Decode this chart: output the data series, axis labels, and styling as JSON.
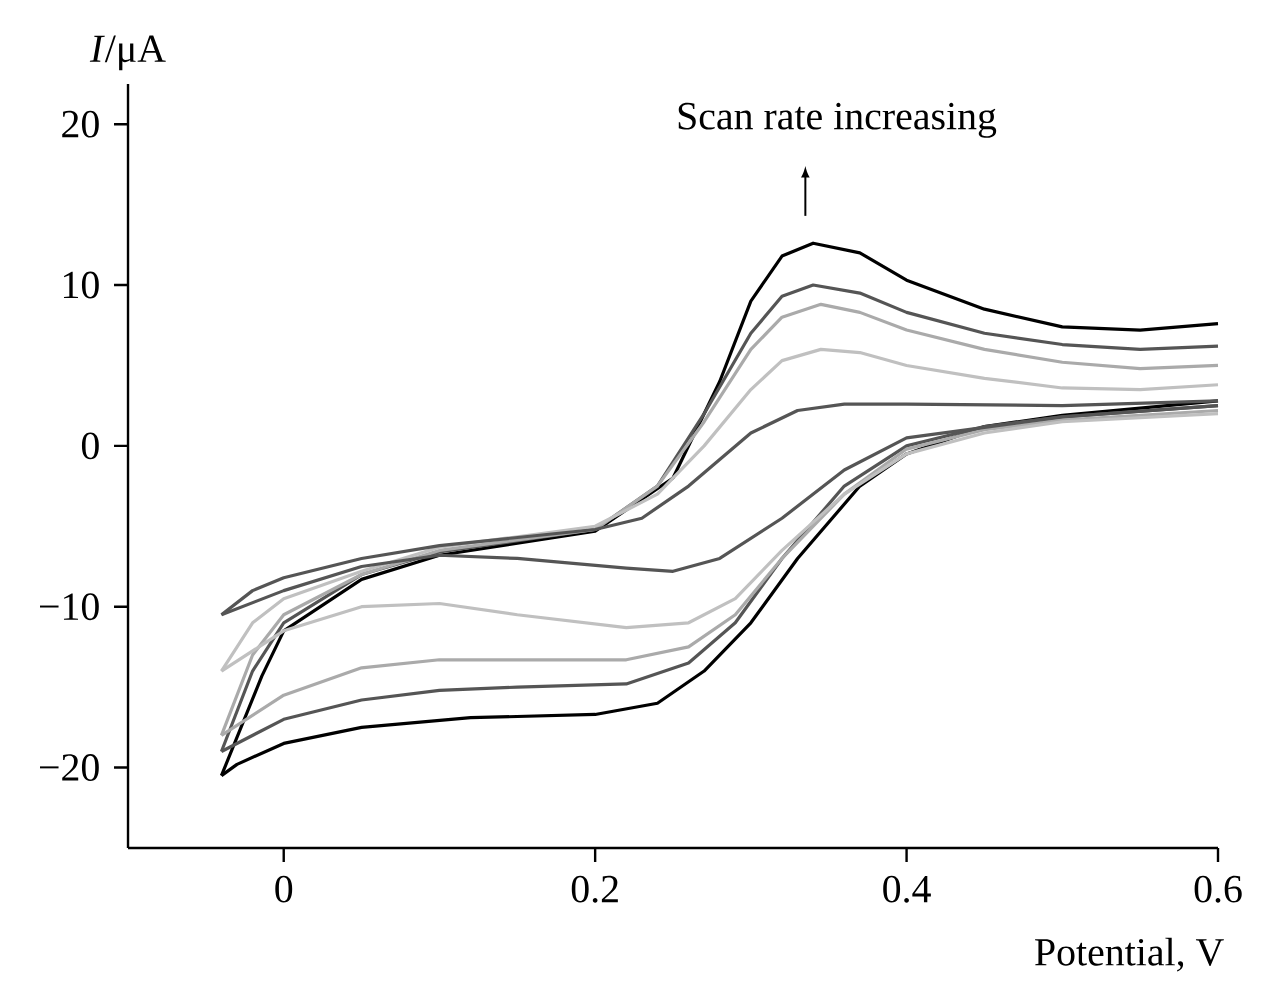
{
  "chart_data": {
    "type": "line",
    "xlabel": "Potential, V",
    "ylabel": "*I*/μA",
    "annotations": [
      "Scan rate increasing"
    ],
    "xlim": [
      -0.1,
      0.6
    ],
    "ylim": [
      -25,
      22.5
    ],
    "xticks": [
      0,
      0.2,
      0.4,
      0.6
    ],
    "yticks": [
      {
        "value": -20,
        "label": "−20"
      },
      {
        "value": -10,
        "label": "−10"
      },
      0,
      10,
      20
    ],
    "grid": false,
    "marker": "none",
    "line_style": "solid",
    "series": [
      {
        "color": "#000000",
        "x": [
          -0.04,
          -0.014,
          0,
          0.05,
          0.1,
          0.2,
          0.25,
          0.28,
          0.3,
          0.32,
          0.34,
          0.37,
          0.4,
          0.45,
          0.5,
          0.55,
          0.6
        ],
        "values": [
          -20.5,
          -14.3,
          -11.5,
          -8.3,
          -6.8,
          -5.3,
          -2,
          4,
          9,
          11.8,
          12.6,
          12,
          10.3,
          8.5,
          7.4,
          7.2,
          7.6
        ]
      },
      {
        "color": "#000000",
        "x": [
          -0.04,
          -0.03,
          0,
          0.05,
          0.12,
          0.2,
          0.24,
          0.27,
          0.3,
          0.33,
          0.37,
          0.4,
          0.45,
          0.5,
          0.6
        ],
        "values": [
          -20.5,
          -19.8,
          -18.5,
          -17.5,
          -16.9,
          -16.7,
          -16,
          -14,
          -11,
          -7,
          -2.5,
          -0.5,
          1.2,
          1.9,
          2.8
        ]
      },
      {
        "color": "#555555",
        "x": [
          -0.04,
          -0.02,
          0,
          0.05,
          0.1,
          0.2,
          0.24,
          0.27,
          0.3,
          0.32,
          0.34,
          0.37,
          0.4,
          0.45,
          0.5,
          0.55,
          0.6
        ],
        "values": [
          -19,
          -14,
          -11,
          -8,
          -6.6,
          -5.2,
          -2.5,
          2,
          7,
          9.3,
          10,
          9.5,
          8.3,
          7,
          6.3,
          6,
          6.2
        ]
      },
      {
        "color": "#555555",
        "x": [
          -0.04,
          0,
          0.05,
          0.1,
          0.15,
          0.22,
          0.26,
          0.29,
          0.32,
          0.36,
          0.4,
          0.45,
          0.5,
          0.6
        ],
        "values": [
          -19,
          -17,
          -15.8,
          -15.2,
          -15,
          -14.8,
          -13.5,
          -11,
          -7,
          -2.5,
          0,
          1.2,
          1.8,
          2.5
        ]
      },
      {
        "color": "#aaaaaa",
        "x": [
          -0.04,
          -0.02,
          0,
          0.05,
          0.1,
          0.2,
          0.24,
          0.27,
          0.3,
          0.32,
          0.345,
          0.37,
          0.4,
          0.45,
          0.5,
          0.55,
          0.6
        ],
        "values": [
          -18,
          -13,
          -10.5,
          -8,
          -6.5,
          -5.2,
          -2.5,
          1.5,
          6,
          8,
          8.8,
          8.3,
          7.2,
          6,
          5.2,
          4.8,
          5
        ]
      },
      {
        "color": "#aaaaaa",
        "x": [
          -0.04,
          0,
          0.05,
          0.1,
          0.15,
          0.22,
          0.26,
          0.29,
          0.32,
          0.36,
          0.4,
          0.45,
          0.5,
          0.6
        ],
        "values": [
          -18,
          -15.5,
          -13.8,
          -13.3,
          -13.3,
          -13.3,
          -12.5,
          -10.5,
          -7,
          -3,
          -0.2,
          1,
          1.6,
          2.2
        ]
      },
      {
        "color": "#c0c0c0",
        "x": [
          -0.04,
          -0.02,
          0,
          0.05,
          0.1,
          0.2,
          0.24,
          0.27,
          0.3,
          0.32,
          0.345,
          0.37,
          0.4,
          0.45,
          0.5,
          0.55,
          0.6
        ],
        "values": [
          -14,
          -11,
          -9.5,
          -7.8,
          -6.3,
          -5,
          -3,
          0,
          3.5,
          5.3,
          6,
          5.8,
          5,
          4.2,
          3.6,
          3.5,
          3.8
        ]
      },
      {
        "color": "#c0c0c0",
        "x": [
          -0.04,
          0,
          0.05,
          0.1,
          0.15,
          0.22,
          0.26,
          0.29,
          0.32,
          0.36,
          0.4,
          0.45,
          0.5,
          0.6
        ],
        "values": [
          -14,
          -11.5,
          -10,
          -9.8,
          -10.5,
          -11.3,
          -11,
          -9.5,
          -6.5,
          -3,
          -0.5,
          0.8,
          1.5,
          2
        ]
      },
      {
        "color": "#555555",
        "x": [
          -0.04,
          -0.02,
          0,
          0.05,
          0.1,
          0.2,
          0.23,
          0.26,
          0.3,
          0.33,
          0.36,
          0.4,
          0.5,
          0.6
        ],
        "values": [
          -10.5,
          -9,
          -8.2,
          -7,
          -6.2,
          -5.2,
          -4.5,
          -2.5,
          0.8,
          2.2,
          2.6,
          2.6,
          2.5,
          2.8
        ]
      },
      {
        "color": "#555555",
        "x": [
          -0.04,
          0,
          0.05,
          0.1,
          0.15,
          0.22,
          0.25,
          0.28,
          0.32,
          0.36,
          0.4,
          0.5,
          0.6
        ],
        "values": [
          -10.5,
          -9,
          -7.5,
          -6.8,
          -7,
          -7.6,
          -7.8,
          -7,
          -4.5,
          -1.5,
          0.5,
          1.8,
          2.5
        ]
      }
    ]
  }
}
